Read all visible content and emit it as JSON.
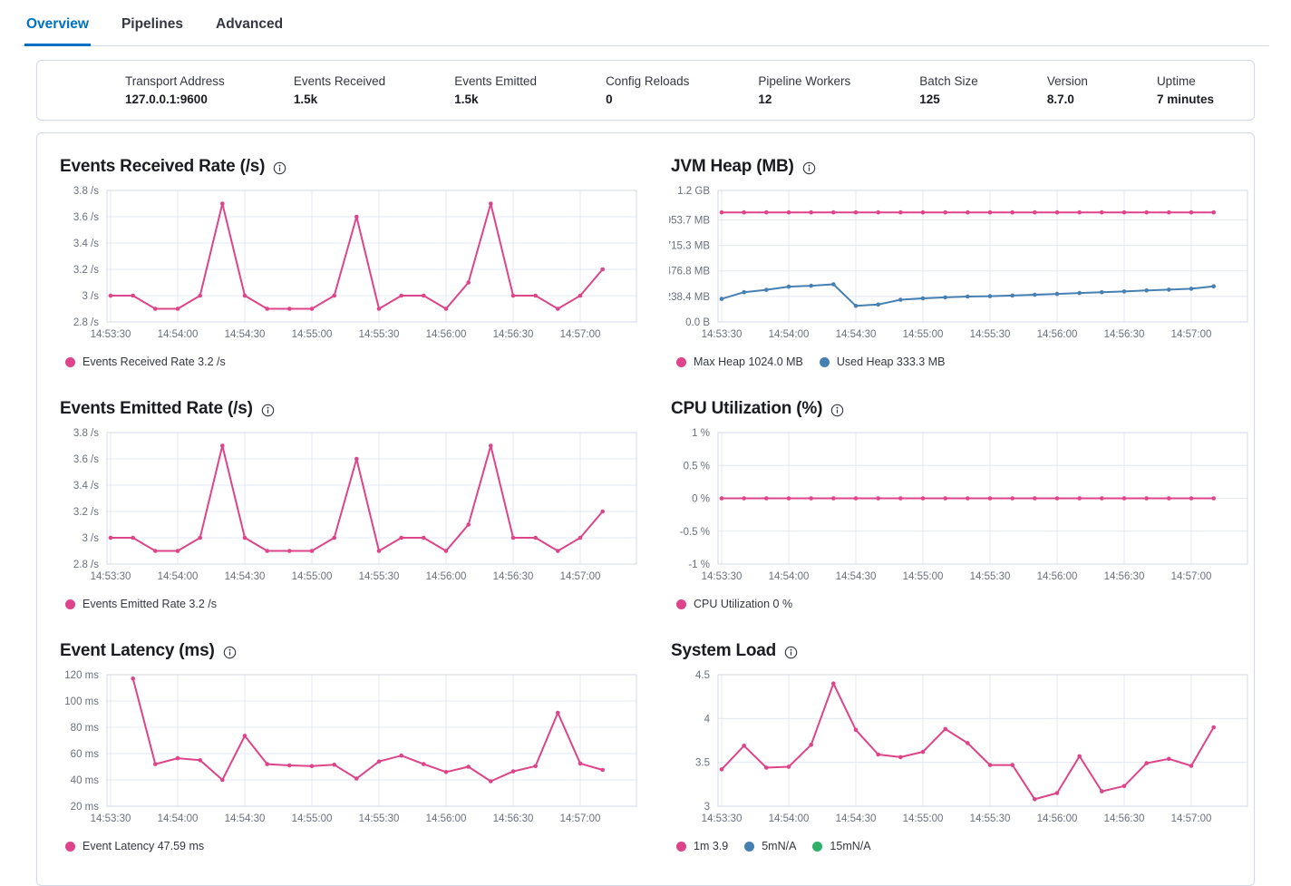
{
  "tabs": [
    {
      "label": "Overview",
      "active": true
    },
    {
      "label": "Pipelines",
      "active": false
    },
    {
      "label": "Advanced",
      "active": false
    }
  ],
  "stats": [
    {
      "label": "Transport Address",
      "value": "127.0.0.1:9600"
    },
    {
      "label": "Events Received",
      "value": "1.5k"
    },
    {
      "label": "Events Emitted",
      "value": "1.5k"
    },
    {
      "label": "Config Reloads",
      "value": "0"
    },
    {
      "label": "Pipeline Workers",
      "value": "12"
    },
    {
      "label": "Batch Size",
      "value": "125"
    },
    {
      "label": "Version",
      "value": "8.7.0"
    },
    {
      "label": "Uptime",
      "value": "7 minutes"
    }
  ],
  "colors": {
    "pink": "#dd4489",
    "blue": "#4680b2",
    "green": "#2faf69",
    "tab_active": "#0071c2",
    "grid": "#e3e8f0",
    "plot_border": "#d3dae6",
    "axis_text": "#69707d"
  },
  "x_axis": {
    "tick_labels": [
      "14:53:30",
      "14:54:00",
      "14:54:30",
      "14:55:00",
      "14:55:30",
      "14:56:00",
      "14:56:30",
      "14:57:00"
    ],
    "tick_interval_s": 30,
    "point_interval_s": 10
  },
  "chart_data": [
    {
      "id": "events-received-rate",
      "type": "line",
      "title": "Events Received Rate (/s)",
      "y_ticks": [
        {
          "label": "3.8 /s",
          "value": 3.8
        },
        {
          "label": "3.6 /s",
          "value": 3.6
        },
        {
          "label": "3.4 /s",
          "value": 3.4
        },
        {
          "label": "3.2 /s",
          "value": 3.2
        },
        {
          "label": "3 /s",
          "value": 3
        },
        {
          "label": "2.8 /s",
          "value": 2.8
        }
      ],
      "ylim": [
        2.8,
        3.8
      ],
      "series": [
        {
          "name": "Events Received Rate",
          "color": "#dd4489",
          "start_offset_s": 0,
          "values": [
            3,
            3,
            2.9,
            2.9,
            3,
            3.7,
            3,
            2.9,
            2.9,
            2.9,
            3,
            3.6,
            2.9,
            3,
            3,
            2.9,
            3.1,
            3.7,
            3,
            3,
            2.9,
            3,
            3.2
          ]
        }
      ],
      "legend": [
        {
          "color": "#dd4489",
          "label": "Events Received Rate 3.2 /s"
        }
      ]
    },
    {
      "id": "jvm-heap",
      "type": "line",
      "title": "JVM Heap (MB)",
      "y_ticks": [
        {
          "label": "1.2 GB",
          "value": 1228.8
        },
        {
          "label": "953.7 MB",
          "value": 953.7
        },
        {
          "label": "715.3 MB",
          "value": 715.3
        },
        {
          "label": "476.8 MB",
          "value": 476.8
        },
        {
          "label": "238.4 MB",
          "value": 238.4
        },
        {
          "label": "0.0 B",
          "value": 0
        }
      ],
      "ylim": [
        0,
        1228.8
      ],
      "series": [
        {
          "name": "Max Heap",
          "color": "#dd4489",
          "start_offset_s": 0,
          "values": [
            1024,
            1024,
            1024,
            1024,
            1024,
            1024,
            1024,
            1024,
            1024,
            1024,
            1024,
            1024,
            1024,
            1024,
            1024,
            1024,
            1024,
            1024,
            1024,
            1024,
            1024,
            1024,
            1024
          ]
        },
        {
          "name": "Used Heap",
          "color": "#4680b2",
          "start_offset_s": 0,
          "values": [
            215,
            278,
            300,
            330,
            338,
            352,
            150,
            163,
            208,
            220,
            230,
            237,
            241,
            247,
            254,
            262,
            270,
            277,
            285,
            294,
            302,
            310,
            333.3
          ]
        }
      ],
      "legend": [
        {
          "color": "#dd4489",
          "label": "Max Heap 1024.0 MB"
        },
        {
          "color": "#4680b2",
          "label": "Used Heap 333.3 MB"
        }
      ]
    },
    {
      "id": "events-emitted-rate",
      "type": "line",
      "title": "Events Emitted Rate (/s)",
      "y_ticks": [
        {
          "label": "3.8 /s",
          "value": 3.8
        },
        {
          "label": "3.6 /s",
          "value": 3.6
        },
        {
          "label": "3.4 /s",
          "value": 3.4
        },
        {
          "label": "3.2 /s",
          "value": 3.2
        },
        {
          "label": "3 /s",
          "value": 3
        },
        {
          "label": "2.8 /s",
          "value": 2.8
        }
      ],
      "ylim": [
        2.8,
        3.8
      ],
      "series": [
        {
          "name": "Events Emitted Rate",
          "color": "#dd4489",
          "start_offset_s": 0,
          "values": [
            3,
            3,
            2.9,
            2.9,
            3,
            3.7,
            3,
            2.9,
            2.9,
            2.9,
            3,
            3.6,
            2.9,
            3,
            3,
            2.9,
            3.1,
            3.7,
            3,
            3,
            2.9,
            3,
            3.2
          ]
        }
      ],
      "legend": [
        {
          "color": "#dd4489",
          "label": "Events Emitted Rate 3.2 /s"
        }
      ]
    },
    {
      "id": "cpu-utilization",
      "type": "line",
      "title": "CPU Utilization (%)",
      "y_ticks": [
        {
          "label": "1 %",
          "value": 1
        },
        {
          "label": "0.5 %",
          "value": 0.5
        },
        {
          "label": "0 %",
          "value": 0
        },
        {
          "label": "-0.5 %",
          "value": -0.5
        },
        {
          "label": "-1 %",
          "value": -1
        }
      ],
      "ylim": [
        -1,
        1
      ],
      "series": [
        {
          "name": "CPU Utilization",
          "color": "#dd4489",
          "start_offset_s": 0,
          "values": [
            0,
            0,
            0,
            0,
            0,
            0,
            0,
            0,
            0,
            0,
            0,
            0,
            0,
            0,
            0,
            0,
            0,
            0,
            0,
            0,
            0,
            0,
            0
          ]
        }
      ],
      "legend": [
        {
          "color": "#dd4489",
          "label": "CPU Utilization 0 %"
        }
      ]
    },
    {
      "id": "event-latency",
      "type": "line",
      "title": "Event Latency (ms)",
      "y_ticks": [
        {
          "label": "120 ms",
          "value": 120
        },
        {
          "label": "100 ms",
          "value": 100
        },
        {
          "label": "80 ms",
          "value": 80
        },
        {
          "label": "60 ms",
          "value": 60
        },
        {
          "label": "40 ms",
          "value": 40
        },
        {
          "label": "20 ms",
          "value": 20
        }
      ],
      "ylim": [
        20,
        120
      ],
      "series": [
        {
          "name": "Event Latency",
          "color": "#dd4489",
          "start_offset_s": 10,
          "values": [
            117,
            52,
            56.5,
            55,
            40,
            73.5,
            52,
            51,
            50.5,
            51.5,
            41,
            54,
            58.5,
            52,
            46,
            50,
            39,
            46.5,
            50.5,
            91,
            52.5,
            47.59
          ]
        }
      ],
      "legend": [
        {
          "color": "#dd4489",
          "label": "Event Latency 47.59 ms"
        }
      ]
    },
    {
      "id": "system-load",
      "type": "line",
      "title": "System Load",
      "y_ticks": [
        {
          "label": "4.5",
          "value": 4.5
        },
        {
          "label": "4",
          "value": 4
        },
        {
          "label": "3.5",
          "value": 3.5
        },
        {
          "label": "3",
          "value": 3
        }
      ],
      "ylim": [
        3,
        4.5
      ],
      "series": [
        {
          "name": "1m",
          "color": "#dd4489",
          "start_offset_s": 0,
          "values": [
            3.42,
            3.69,
            3.44,
            3.45,
            3.7,
            4.4,
            3.87,
            3.59,
            3.56,
            3.62,
            3.88,
            3.72,
            3.47,
            3.47,
            3.08,
            3.15,
            3.57,
            3.17,
            3.23,
            3.49,
            3.54,
            3.46,
            3.9
          ]
        }
      ],
      "legend": [
        {
          "color": "#dd4489",
          "label": "1m 3.9"
        },
        {
          "color": "#4680b2",
          "label": "5mN/A"
        },
        {
          "color": "#2faf69",
          "label": "15mN/A"
        }
      ]
    }
  ]
}
